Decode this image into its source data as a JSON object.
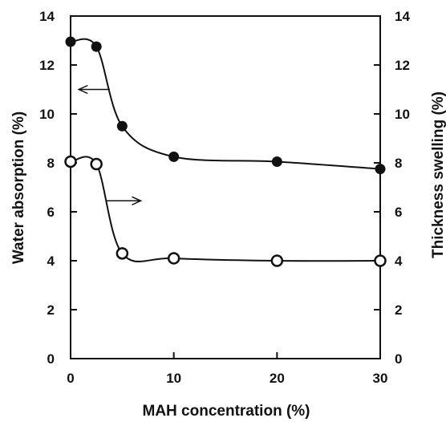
{
  "chart_data": {
    "type": "line",
    "xlabel": "MAH concentration (%)",
    "ylabel": "Water absorption (%)",
    "y2label": "Thickness swelling (%)",
    "xlim": [
      0,
      30
    ],
    "ylim": [
      0,
      14
    ],
    "y2lim": [
      0,
      14
    ],
    "xticks": [
      0,
      10,
      20,
      30
    ],
    "yticks": [
      0,
      2,
      4,
      6,
      8,
      10,
      12,
      14
    ],
    "y2ticks": [
      0,
      2,
      4,
      6,
      8,
      10,
      12,
      14
    ],
    "grid": false,
    "legend": "none",
    "series": [
      {
        "axis": "left",
        "marker": "filled-circle",
        "points": [
          [
            0,
            12.95
          ],
          [
            2.5,
            12.75
          ],
          [
            5,
            9.5
          ],
          [
            10,
            8.25
          ],
          [
            20,
            8.05
          ],
          [
            30,
            7.75
          ]
        ]
      },
      {
        "axis": "right",
        "marker": "open-circle",
        "points": [
          [
            0,
            8.05
          ],
          [
            2.5,
            7.95
          ],
          [
            5,
            4.3
          ],
          [
            10,
            4.1
          ],
          [
            20,
            4.0
          ],
          [
            30,
            4.0
          ]
        ]
      }
    ],
    "annotations": [
      {
        "type": "arrow",
        "direction": "left",
        "from": [
          3.8,
          11.0
        ],
        "to": [
          0.8,
          11.0
        ]
      },
      {
        "type": "arrow",
        "direction": "right",
        "from": [
          3.5,
          6.45
        ],
        "to": [
          6.8,
          6.45
        ]
      }
    ]
  }
}
